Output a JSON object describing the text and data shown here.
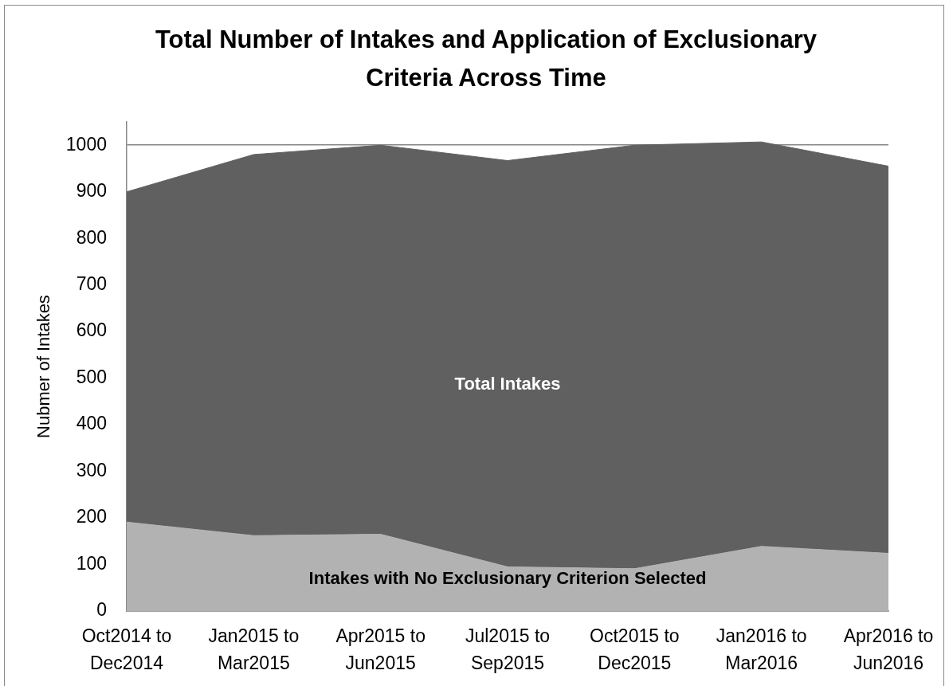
{
  "chart_data": {
    "type": "area",
    "title": "Total Number of Intakes and Application of Exclusionary Criteria Across Time",
    "ylabel": "Nubmer of Intakes",
    "categories": [
      "Oct2014 to Dec2014",
      "Jan2015 to Mar2015",
      "Apr2015 to Jun2015",
      "Jul2015 to Sep2015",
      "Oct2015 to Dec2015",
      "Jan2016 to Mar2016",
      "Apr2016 to Jun2016"
    ],
    "series": [
      {
        "name": "Intakes with No Exclusionary Criterion Selected",
        "color": "#b2b2b2",
        "values": [
          191,
          162,
          165,
          95,
          91,
          139,
          124
        ]
      },
      {
        "name": "Total Intakes",
        "color": "#606060",
        "values": [
          900,
          980,
          1000,
          967,
          1000,
          1007,
          955
        ]
      }
    ],
    "ylim": [
      0,
      1050
    ],
    "yticks": [
      0,
      100,
      200,
      300,
      400,
      500,
      600,
      700,
      800,
      900,
      1000
    ],
    "grid": "y",
    "legend": false
  }
}
